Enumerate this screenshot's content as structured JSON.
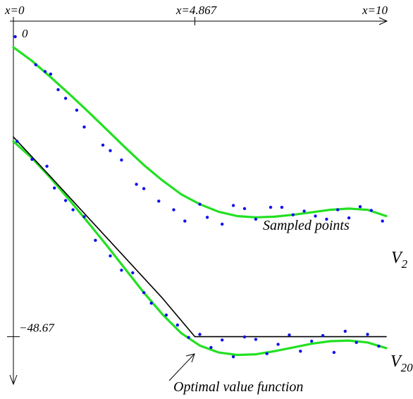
{
  "chart_data": {
    "type": "scatter",
    "title": "",
    "x_axis": {
      "range": [
        0,
        10
      ],
      "ticks": [
        {
          "value": 0,
          "label": "x=0"
        },
        {
          "value": 4.867,
          "label": "x=4.867"
        },
        {
          "value": 10,
          "label": "x=10"
        }
      ]
    },
    "y_axis": {
      "range": [
        -58,
        2
      ],
      "direction": "downward",
      "ticks": [
        {
          "value": 0,
          "label": "0"
        },
        {
          "value": -48.67,
          "label": "−48.67"
        }
      ]
    },
    "annotations": {
      "sampled_points": "Sampled points",
      "optimal_value_function": "Optimal value function"
    },
    "series": [
      {
        "name": "V_2",
        "label_main": "V",
        "label_sub": "2",
        "type": "line",
        "color": "#22e022",
        "x": [
          0,
          0.5,
          1,
          1.5,
          2,
          2.5,
          3,
          3.5,
          4,
          4.5,
          5,
          5.5,
          6,
          6.5,
          7,
          7.5,
          8,
          8.5,
          9,
          9.5,
          10
        ],
        "y": [
          -2.2,
          -4.4,
          -7.0,
          -9.7,
          -12.5,
          -15.4,
          -18.3,
          -21.1,
          -23.6,
          -25.8,
          -27.4,
          -28.6,
          -29.3,
          -29.5,
          -29.4,
          -29.1,
          -28.7,
          -28.3,
          -28.1,
          -28.3,
          -29.3
        ]
      },
      {
        "name": "V_20",
        "label_main": "V",
        "label_sub": "20",
        "type": "line",
        "color": "#22e022",
        "x": [
          0,
          0.5,
          1,
          1.5,
          2,
          2.5,
          3,
          3.5,
          4,
          4.5,
          5,
          5.5,
          6,
          6.5,
          7,
          7.5,
          8,
          8.5,
          9,
          9.5,
          10
        ],
        "y": [
          -17.3,
          -20.0,
          -23.2,
          -26.7,
          -30.3,
          -34.0,
          -37.8,
          -41.6,
          -45.1,
          -48.1,
          -50.1,
          -51.2,
          -51.6,
          -51.5,
          -51.0,
          -50.4,
          -49.8,
          -49.4,
          -49.3,
          -49.6,
          -50.5
        ]
      },
      {
        "name": "Optimal value function",
        "type": "line",
        "color": "#000000",
        "x": [
          0,
          1,
          2,
          3,
          4,
          4.867,
          6,
          7,
          8,
          9,
          10
        ],
        "y": [
          -16.6,
          -23.0,
          -29.5,
          -36.0,
          -42.5,
          -48.67,
          -48.67,
          -48.67,
          -48.67,
          -48.67,
          -48.67
        ]
      },
      {
        "name": "Sampled points",
        "type": "scatter",
        "color": "#1010ee",
        "x": [
          0.05,
          0.6,
          0.85,
          1.0,
          1.2,
          1.4,
          1.7,
          1.9,
          2.4,
          2.6,
          2.9,
          3.3,
          3.5,
          3.9,
          4.3,
          4.6,
          5.0,
          5.2,
          5.6,
          5.9,
          6.2,
          6.5,
          6.9,
          7.2,
          7.5,
          7.8,
          8.1,
          8.4,
          8.7,
          9.0,
          9.3,
          9.6,
          9.9,
          0.1,
          0.5,
          0.9,
          1.1,
          1.4,
          1.6,
          1.9,
          2.2,
          2.6,
          2.9,
          3.2,
          3.5,
          3.7,
          4.1,
          4.4,
          4.7,
          5.0,
          5.3,
          5.6,
          5.9,
          6.2,
          6.5,
          6.8,
          7.1,
          7.4,
          7.7,
          8.0,
          8.3,
          8.6,
          8.9,
          9.2,
          9.5,
          9.8
        ],
        "y": [
          -0.5,
          -5.0,
          -6.1,
          -6.5,
          -9.0,
          -10.4,
          -12.3,
          -15.0,
          -17.9,
          -18.8,
          -20.3,
          -24.2,
          -24.9,
          -26.9,
          -28.3,
          -30.1,
          -27.4,
          -29.5,
          -30.6,
          -27.6,
          -28.1,
          -29.8,
          -27.9,
          -27.9,
          -29.1,
          -28.5,
          -29.3,
          -29.8,
          -28.3,
          -29.6,
          -27.8,
          -28.4,
          -30.1,
          -17.3,
          -20.2,
          -21.3,
          -24.8,
          -26.8,
          -28.3,
          -29.4,
          -33.2,
          -35.7,
          -38.0,
          -38.4,
          -41.6,
          -43.3,
          -45.2,
          -46.8,
          -48.8,
          -48.3,
          -50.4,
          -49.2,
          -51.9,
          -48.7,
          -49.1,
          -51.4,
          -49.9,
          -48.4,
          -51.0,
          -49.4,
          -48.5,
          -51.2,
          -47.8,
          -49.6,
          -48.3,
          -50.2
        ]
      }
    ],
    "grid": false,
    "legend": "none"
  }
}
